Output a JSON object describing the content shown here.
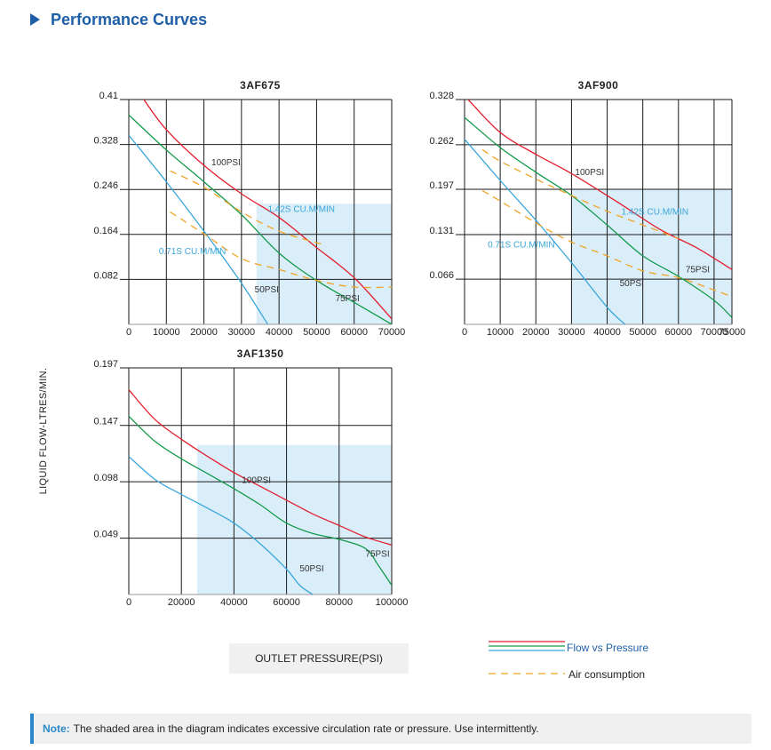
{
  "page": {
    "title": "Performance Curves",
    "y_axis_title": "LIQUID FLOW-LTRES/MIN.",
    "x_axis_title": "OUTLET PRESSURE(PSI)",
    "legend": {
      "flow_label": "Flow vs Pressure",
      "air_label": "Air consumption"
    },
    "note": {
      "prefix": "Note:",
      "text": "The shaded area in the diagram indicates excessive circulation rate or pressure. Use intermittently."
    }
  },
  "colors": {
    "red": "#e31e2d",
    "green": "#139a4a",
    "blue": "#3aa6d9",
    "orange": "#f0a326",
    "shade": "#daeefa",
    "accent": "#1f5fa8",
    "note_bar": "#2b87c8"
  },
  "chart_data": [
    {
      "type": "line",
      "title": "3AF675",
      "xlim": [
        0,
        70000
      ],
      "ylim": [
        0,
        0.41
      ],
      "x_ticks": [
        0,
        10000,
        20000,
        30000,
        40000,
        50000,
        60000,
        70000
      ],
      "x_tick_labels": [
        "0",
        "10000",
        "20000",
        "30000",
        "40000",
        "50000",
        "60000",
        "70000"
      ],
      "y_ticks": [
        0.082,
        0.164,
        0.246,
        0.328,
        0.41
      ],
      "y_tick_labels": [
        "0.082",
        "0.164",
        "0.246",
        "0.328",
        "0.41"
      ],
      "shaded": {
        "x0": 34000,
        "x1": 70000,
        "y_top": 0.22
      },
      "series": [
        {
          "kind": "flow",
          "color": "red",
          "name": "100PSI",
          "points": [
            [
              4000,
              0.41
            ],
            [
              10000,
              0.355
            ],
            [
              20000,
              0.29
            ],
            [
              30000,
              0.238
            ],
            [
              40000,
              0.195
            ],
            [
              50000,
              0.14
            ],
            [
              60000,
              0.085
            ],
            [
              70000,
              0.01
            ]
          ]
        },
        {
          "kind": "flow",
          "color": "green",
          "name": "75PSI",
          "points": [
            [
              0,
              0.382
            ],
            [
              10000,
              0.318
            ],
            [
              20000,
              0.26
            ],
            [
              30000,
              0.2
            ],
            [
              40000,
              0.13
            ],
            [
              50000,
              0.08
            ],
            [
              60000,
              0.04
            ],
            [
              70000,
              0.0
            ]
          ]
        },
        {
          "kind": "flow",
          "color": "blue",
          "name": "50PSI",
          "points": [
            [
              0,
              0.345
            ],
            [
              10000,
              0.26
            ],
            [
              20000,
              0.17
            ],
            [
              30000,
              0.075
            ],
            [
              37000,
              0.0
            ]
          ]
        },
        {
          "kind": "air",
          "color": "orange",
          "name": "1.42S CU.M/MIN",
          "points": [
            [
              11000,
              0.28
            ],
            [
              20000,
              0.25
            ],
            [
              30000,
              0.205
            ],
            [
              40000,
              0.17
            ],
            [
              52000,
              0.145
            ]
          ]
        },
        {
          "kind": "air",
          "color": "orange",
          "name": "0.71S CU.M/MIN",
          "points": [
            [
              11000,
              0.205
            ],
            [
              20000,
              0.165
            ],
            [
              30000,
              0.12
            ],
            [
              40000,
              0.1
            ],
            [
              50000,
              0.08
            ],
            [
              60000,
              0.068
            ],
            [
              70000,
              0.068
            ]
          ]
        }
      ],
      "labels": [
        {
          "text": "100PSI",
          "x": 22000,
          "y": 0.29,
          "color": "#333333"
        },
        {
          "text": "1.42S CU.M/MIN",
          "x": 37000,
          "y": 0.205,
          "color": "#3aa6d9"
        },
        {
          "text": "0.71S CU.M/MIN",
          "x": 8000,
          "y": 0.128,
          "color": "#3aa6d9"
        },
        {
          "text": "50PSI",
          "x": 33500,
          "y": 0.058,
          "color": "#333333"
        },
        {
          "text": "75PSI",
          "x": 55000,
          "y": 0.042,
          "color": "#333333"
        }
      ]
    },
    {
      "type": "line",
      "title": "3AF900",
      "xlim": [
        0,
        75000
      ],
      "ylim": [
        0,
        0.328
      ],
      "x_ticks": [
        0,
        10000,
        20000,
        30000,
        40000,
        50000,
        60000,
        70000,
        75000
      ],
      "x_tick_labels": [
        "0",
        "10000",
        "20000",
        "30000",
        "40000",
        "50000",
        "60000",
        "70000",
        "75000"
      ],
      "y_ticks": [
        0.066,
        0.131,
        0.197,
        0.262,
        0.328
      ],
      "y_tick_labels": [
        "0.066",
        "0.131",
        "0.197",
        "0.262",
        "0.328"
      ],
      "shaded": {
        "x0": 30000,
        "x1": 75000,
        "y_top": 0.197
      },
      "series": [
        {
          "kind": "flow",
          "color": "red",
          "name": "100PSI",
          "points": [
            [
              1000,
              0.328
            ],
            [
              10000,
              0.28
            ],
            [
              20000,
              0.248
            ],
            [
              30000,
              0.22
            ],
            [
              43000,
              0.178
            ],
            [
              55000,
              0.138
            ],
            [
              65000,
              0.112
            ],
            [
              75000,
              0.08
            ]
          ]
        },
        {
          "kind": "flow",
          "color": "green",
          "name": "75PSI",
          "points": [
            [
              0,
              0.302
            ],
            [
              10000,
              0.258
            ],
            [
              20000,
              0.222
            ],
            [
              30000,
              0.188
            ],
            [
              40000,
              0.145
            ],
            [
              50000,
              0.1
            ],
            [
              60000,
              0.07
            ],
            [
              70000,
              0.035
            ],
            [
              75000,
              0.01
            ]
          ]
        },
        {
          "kind": "flow",
          "color": "blue",
          "name": "50PSI",
          "points": [
            [
              0,
              0.27
            ],
            [
              10000,
              0.21
            ],
            [
              20000,
              0.152
            ],
            [
              30000,
              0.09
            ],
            [
              40000,
              0.025
            ],
            [
              45000,
              0.0
            ]
          ]
        },
        {
          "kind": "air",
          "color": "orange",
          "name": "1.42S CU.M/MIN",
          "points": [
            [
              5000,
              0.255
            ],
            [
              10000,
              0.238
            ],
            [
              20000,
              0.212
            ],
            [
              30000,
              0.188
            ],
            [
              40000,
              0.165
            ],
            [
              50000,
              0.145
            ],
            [
              60000,
              0.125
            ]
          ]
        },
        {
          "kind": "air",
          "color": "orange",
          "name": "0.71S CU.M/MIN",
          "points": [
            [
              5000,
              0.195
            ],
            [
              10000,
              0.18
            ],
            [
              20000,
              0.148
            ],
            [
              30000,
              0.12
            ],
            [
              40000,
              0.1
            ],
            [
              50000,
              0.078
            ],
            [
              60000,
              0.068
            ],
            [
              70000,
              0.05
            ],
            [
              75000,
              0.04
            ]
          ]
        }
      ],
      "labels": [
        {
          "text": "100PSI",
          "x": 31000,
          "y": 0.218,
          "color": "#333333"
        },
        {
          "text": "1.42S CU.M/MIN",
          "x": 44000,
          "y": 0.16,
          "color": "#3aa6d9"
        },
        {
          "text": "0.71S CU.M/MIN",
          "x": 6500,
          "y": 0.112,
          "color": "#3aa6d9"
        },
        {
          "text": "75PSI",
          "x": 62000,
          "y": 0.076,
          "color": "#333333"
        },
        {
          "text": "50PSI",
          "x": 43500,
          "y": 0.056,
          "color": "#333333"
        }
      ]
    },
    {
      "type": "line",
      "title": "3AF1350",
      "xlim": [
        0,
        100000
      ],
      "ylim": [
        0,
        0.197
      ],
      "x_ticks": [
        0,
        20000,
        40000,
        60000,
        80000,
        100000
      ],
      "x_tick_labels": [
        "0",
        "20000",
        "40000",
        "60000",
        "80000",
        "100000"
      ],
      "y_ticks": [
        0.049,
        0.098,
        0.147,
        0.197
      ],
      "y_tick_labels": [
        "0.049",
        "0.098",
        "0.147",
        "0.197"
      ],
      "shaded": {
        "x0": 26000,
        "x1": 100000,
        "y_top": 0.13
      },
      "series": [
        {
          "kind": "flow",
          "color": "red",
          "name": "100PSI",
          "points": [
            [
              0,
              0.178
            ],
            [
              10000,
              0.152
            ],
            [
              20000,
              0.135
            ],
            [
              30000,
              0.12
            ],
            [
              40000,
              0.106
            ],
            [
              50000,
              0.094
            ],
            [
              60000,
              0.082
            ],
            [
              70000,
              0.07
            ],
            [
              80000,
              0.06
            ],
            [
              90000,
              0.05
            ],
            [
              100000,
              0.043
            ]
          ]
        },
        {
          "kind": "flow",
          "color": "green",
          "name": "75PSI",
          "points": [
            [
              0,
              0.155
            ],
            [
              10000,
              0.133
            ],
            [
              20000,
              0.118
            ],
            [
              30000,
              0.105
            ],
            [
              40000,
              0.092
            ],
            [
              50000,
              0.078
            ],
            [
              60000,
              0.062
            ],
            [
              70000,
              0.053
            ],
            [
              80000,
              0.048
            ],
            [
              90000,
              0.04
            ],
            [
              95000,
              0.025
            ],
            [
              100000,
              0.008
            ]
          ]
        },
        {
          "kind": "flow",
          "color": "blue",
          "name": "50PSI",
          "points": [
            [
              0,
              0.12
            ],
            [
              10000,
              0.1
            ],
            [
              20000,
              0.087
            ],
            [
              30000,
              0.075
            ],
            [
              40000,
              0.062
            ],
            [
              50000,
              0.044
            ],
            [
              60000,
              0.022
            ],
            [
              65000,
              0.008
            ],
            [
              70000,
              0.0
            ]
          ]
        }
      ],
      "labels": [
        {
          "text": "100PSI",
          "x": 43000,
          "y": 0.097,
          "color": "#333333"
        },
        {
          "text": "75PSI",
          "x": 90000,
          "y": 0.033,
          "color": "#333333"
        },
        {
          "text": "50PSI",
          "x": 65000,
          "y": 0.02,
          "color": "#333333"
        }
      ]
    }
  ]
}
